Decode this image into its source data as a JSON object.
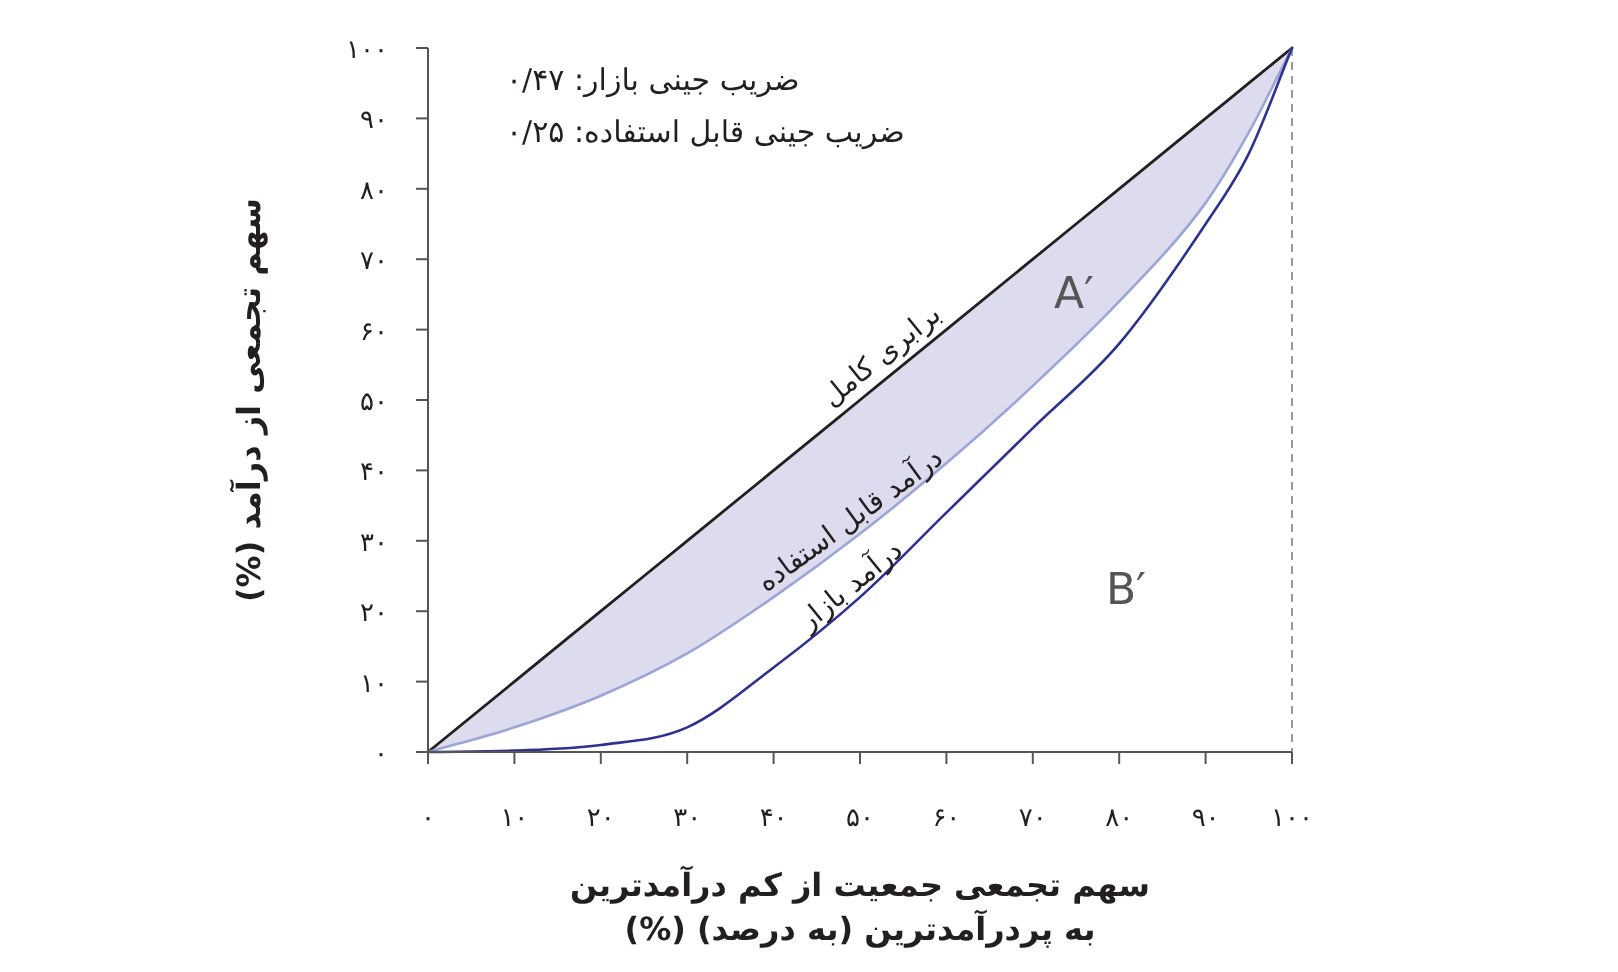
{
  "chart_data": {
    "type": "line",
    "xlabel": "سهم تجمعی جمعیت از کم درآمدترین\nبه پردرآمدترین (به درصد) (%)",
    "ylabel": "سهم تجمعی از درآمد (%)",
    "xlim": [
      0,
      100
    ],
    "ylim": [
      0,
      100
    ],
    "xticks": [
      {
        "value": 0,
        "label": "۰"
      },
      {
        "value": 10,
        "label": "۱۰"
      },
      {
        "value": 20,
        "label": "۲۰"
      },
      {
        "value": 30,
        "label": "۳۰"
      },
      {
        "value": 40,
        "label": "۴۰"
      },
      {
        "value": 50,
        "label": "۵۰"
      },
      {
        "value": 60,
        "label": "۶۰"
      },
      {
        "value": 70,
        "label": "۷۰"
      },
      {
        "value": 80,
        "label": "۸۰"
      },
      {
        "value": 90,
        "label": "۹۰"
      },
      {
        "value": 100,
        "label": "۱۰۰"
      }
    ],
    "yticks": [
      {
        "value": 0,
        "label": "۰"
      },
      {
        "value": 10,
        "label": "۱۰"
      },
      {
        "value": 20,
        "label": "۲۰"
      },
      {
        "value": 30,
        "label": "۳۰"
      },
      {
        "value": 40,
        "label": "۴۰"
      },
      {
        "value": 50,
        "label": "۵۰"
      },
      {
        "value": 60,
        "label": "۶۰"
      },
      {
        "value": 70,
        "label": "۷۰"
      },
      {
        "value": 80,
        "label": "۸۰"
      },
      {
        "value": 90,
        "label": "۹۰"
      },
      {
        "value": 100,
        "label": "۱۰۰"
      }
    ],
    "x": [
      0,
      10,
      20,
      30,
      40,
      50,
      60,
      70,
      80,
      90,
      95,
      100
    ],
    "series": [
      {
        "name": "برابری کامل",
        "color": "#231f20",
        "values": [
          0,
          10,
          20,
          30,
          40,
          50,
          60,
          70,
          80,
          90,
          95,
          100
        ],
        "lower": [
          0,
          3.5,
          8,
          14,
          22,
          31,
          41,
          52,
          64,
          78,
          88,
          100
        ],
        "upper": [
          0,
          10,
          20,
          30,
          40,
          50,
          60,
          70,
          80,
          90,
          95,
          100
        ]
      },
      {
        "name": "درآمد قابل استفاده",
        "color": "#9ba6d6",
        "values": [
          0,
          3.5,
          8,
          14,
          22,
          31,
          41,
          52,
          64,
          78,
          88,
          100
        ]
      },
      {
        "name": "درآمد بازار",
        "color": "#2e3192",
        "values": [
          0,
          0.2,
          1,
          3.5,
          12,
          22,
          34,
          46,
          58,
          75,
          85,
          100
        ]
      }
    ],
    "ref_lines": [
      {
        "axis": "x",
        "value": 100,
        "color": "#999999",
        "line_style": "dashed"
      }
    ],
    "annotations": [
      "ضریب جینی بازار: ۰/۴۷",
      "ضریب جینی قابل استفاده: ۰/۲۵",
      "A′",
      "B′"
    ],
    "grid": false,
    "marker": "none",
    "line_style": "solid"
  }
}
